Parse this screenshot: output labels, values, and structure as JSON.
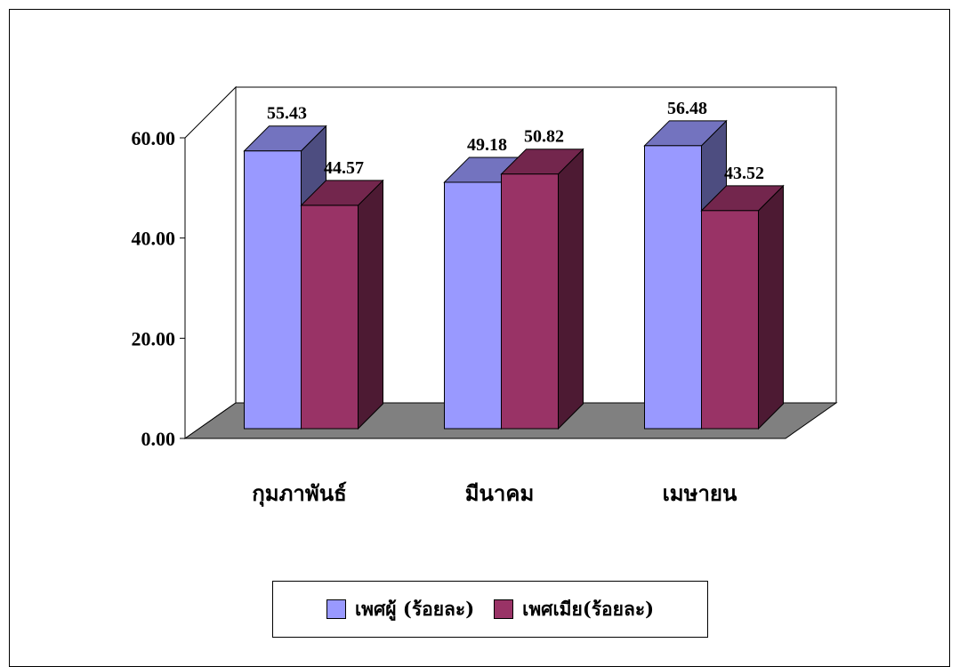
{
  "chart_data": {
    "type": "bar",
    "style": "3d-clustered-column",
    "categories": [
      "กุมภาพันธ์",
      "มีนาคม",
      "เมษายน"
    ],
    "series": [
      {
        "name": "เพศผู้ (ร้อยละ)",
        "values": [
          55.43,
          49.18,
          56.48
        ],
        "color": "#9999ff"
      },
      {
        "name": "เพศเมีย(ร้อยละ)",
        "values": [
          44.57,
          50.82,
          43.52
        ],
        "color": "#993366"
      }
    ],
    "data_labels": [
      [
        "55.43",
        "49.18",
        "56.48"
      ],
      [
        "44.57",
        "50.82",
        "43.52"
      ]
    ],
    "yticks": [
      "0.00",
      "20.00",
      "40.00",
      "60.00"
    ],
    "ylim": [
      0,
      60
    ],
    "floor_color": "#808080",
    "grid": false,
    "legend_position": "bottom"
  }
}
